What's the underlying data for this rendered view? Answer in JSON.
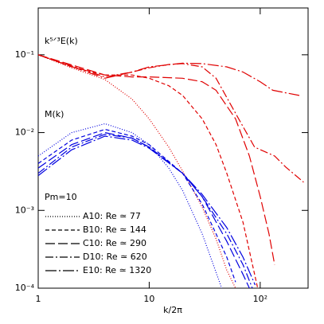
{
  "chart_data": {
    "type": "line",
    "x_label": "k/2π",
    "annotations": [
      "k⁵ᐟ³E(k)",
      "M(k)",
      "Pm=10"
    ],
    "log_x": true,
    "log_y": true,
    "xlim": [
      1,
      270
    ],
    "ylim": [
      0.0001,
      0.4
    ],
    "xticks": [
      1,
      10,
      {
        "value": 100,
        "label": "10²"
      }
    ],
    "yticks": [
      {
        "value": 0.0001,
        "label": "10⁻⁴"
      },
      {
        "value": 0.001,
        "label": "10⁻³"
      },
      {
        "value": 0.01,
        "label": "10⁻²"
      },
      {
        "value": 0.1,
        "label": "10⁻¹"
      }
    ],
    "legend": "lower left",
    "series": [
      {
        "name": "A10: Re ≃ 77",
        "color": "#e00000",
        "dash": "1,2",
        "x": [
          1,
          2,
          4,
          7,
          10,
          15,
          20,
          30,
          40,
          50,
          60
        ],
        "values": [
          0.1,
          0.068,
          0.048,
          0.027,
          0.015,
          0.0065,
          0.0032,
          0.0011,
          0.00043,
          0.00017,
          0.0001
        ]
      },
      {
        "name": "B10: Re ≃ 144",
        "color": "#e00000",
        "dash": "5,3",
        "x": [
          1,
          2,
          4,
          7,
          10,
          15,
          20,
          30,
          40,
          50,
          70,
          95
        ],
        "values": [
          0.1,
          0.07,
          0.055,
          0.055,
          0.05,
          0.04,
          0.03,
          0.015,
          0.007,
          0.003,
          0.0007,
          0.0001
        ]
      },
      {
        "name": "C10: Re ≃ 290",
        "color": "#e00000",
        "dash": "12,4",
        "x": [
          1,
          4,
          7,
          10,
          20,
          30,
          40,
          60,
          80,
          100,
          120,
          135
        ],
        "values": [
          0.1,
          0.055,
          0.052,
          0.052,
          0.05,
          0.045,
          0.035,
          0.015,
          0.005,
          0.0015,
          0.0005,
          0.0002
        ]
      },
      {
        "name": "D10: Re ≃ 620",
        "color": "#e00000",
        "dash": "10,3,2,3",
        "x": [
          1,
          4,
          7,
          10,
          15,
          20,
          30,
          40,
          64,
          89,
          135,
          170,
          246
        ],
        "values": [
          0.1,
          0.052,
          0.06,
          0.068,
          0.075,
          0.077,
          0.07,
          0.05,
          0.015,
          0.0065,
          0.005,
          0.0036,
          0.0023
        ]
      },
      {
        "name": "E10: Re ≃ 1320",
        "color": "#e00000",
        "dash": "14,3,2,3",
        "x": [
          1,
          4,
          7,
          10,
          20,
          30,
          50,
          70,
          100,
          130,
          225
        ],
        "values": [
          0.1,
          0.05,
          0.06,
          0.07,
          0.078,
          0.077,
          0.07,
          0.06,
          0.045,
          0.035,
          0.03
        ]
      },
      {
        "color": "#0000e0",
        "dash": "1,2",
        "x": [
          1,
          2,
          4,
          7,
          10,
          15,
          20,
          30,
          40,
          45
        ],
        "values": [
          0.005,
          0.01,
          0.013,
          0.01,
          0.007,
          0.0035,
          0.0018,
          0.0005,
          0.00016,
          0.0001
        ]
      },
      {
        "color": "#0000e0",
        "dash": "5,3",
        "x": [
          1,
          2,
          4,
          7,
          10,
          20,
          30,
          40,
          50,
          60
        ],
        "values": [
          0.004,
          0.008,
          0.011,
          0.009,
          0.007,
          0.003,
          0.0012,
          0.0005,
          0.00025,
          0.00012
        ]
      },
      {
        "color": "#0000e0",
        "dash": "12,4",
        "x": [
          1,
          2,
          4,
          7,
          10,
          20,
          30,
          50,
          70,
          80
        ],
        "values": [
          0.0035,
          0.007,
          0.01,
          0.0085,
          0.0065,
          0.003,
          0.0015,
          0.0004,
          0.00015,
          0.0001
        ]
      },
      {
        "color": "#0000e0",
        "dash": "10,3,2,3",
        "x": [
          1,
          2,
          4,
          7,
          10,
          20,
          30,
          50,
          70,
          85
        ],
        "values": [
          0.003,
          0.0065,
          0.0095,
          0.0085,
          0.0065,
          0.003,
          0.0015,
          0.0005,
          0.0002,
          0.0001
        ]
      },
      {
        "color": "#0000e0",
        "dash": "14,3,2,3",
        "x": [
          1,
          2,
          4,
          7,
          10,
          20,
          30,
          50,
          70,
          90
        ],
        "values": [
          0.0028,
          0.006,
          0.009,
          0.008,
          0.0063,
          0.003,
          0.0016,
          0.0006,
          0.00025,
          0.00011
        ]
      }
    ]
  }
}
